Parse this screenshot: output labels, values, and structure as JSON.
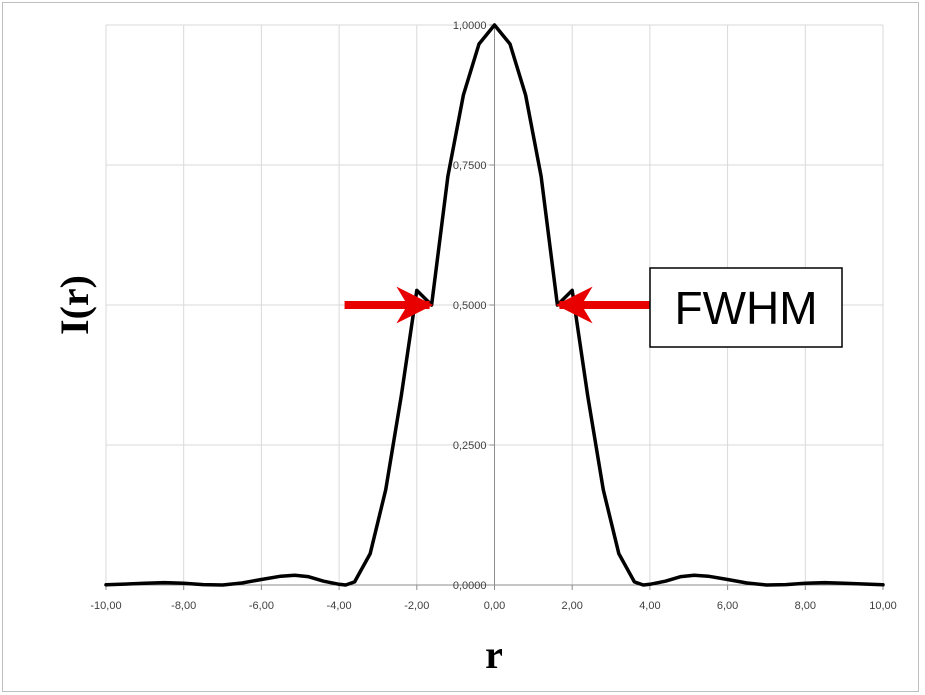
{
  "chart_data": {
    "type": "line",
    "xlabel": "r",
    "ylabel": "I(r)",
    "xlim": [
      -10,
      10
    ],
    "ylim": [
      0,
      1
    ],
    "x_ticks": [
      "-10,00",
      "-8,00",
      "-6,00",
      "-4,00",
      "-2,00",
      "0,00",
      "2,00",
      "4,00",
      "6,00",
      "8,00",
      "10,00"
    ],
    "y_ticks": [
      "0,0000",
      "0,2500",
      "0,5000",
      "0,7500",
      "1,0000"
    ],
    "x_tick_values": [
      -10,
      -8,
      -6,
      -4,
      -2,
      0,
      2,
      4,
      6,
      8,
      10
    ],
    "y_tick_values": [
      0,
      0.25,
      0.5,
      0.75,
      1
    ],
    "grid": true,
    "legend": "none",
    "series": [
      {
        "x": [
          -10,
          -9,
          -8.5,
          -8,
          -7.5,
          -7,
          -6.5,
          -6,
          -5.5,
          -5.14,
          -4.8,
          -4.4,
          -4,
          -3.83,
          -3.6,
          -3.2,
          -2.8,
          -2.4,
          -2,
          -1.62,
          -1.2,
          -0.8,
          -0.4,
          0,
          0.4,
          0.8,
          1.2,
          1.62,
          2,
          2.4,
          2.8,
          3.2,
          3.6,
          3.83,
          4,
          4.4,
          4.8,
          5.14,
          5.5,
          6,
          6.5,
          7,
          7.5,
          8,
          8.5,
          9,
          10
        ],
        "y": [
          0.0003,
          0.003,
          0.0042,
          0.003,
          0.0008,
          0.0,
          0.0035,
          0.0098,
          0.0158,
          0.0175,
          0.015,
          0.0068,
          0.0012,
          0.0,
          0.0055,
          0.056,
          0.17,
          0.338,
          0.526,
          0.5,
          0.73,
          0.875,
          0.966,
          1.0,
          0.966,
          0.875,
          0.73,
          0.5,
          0.526,
          0.338,
          0.17,
          0.056,
          0.0055,
          0.0,
          0.0012,
          0.0068,
          0.015,
          0.0175,
          0.0158,
          0.0098,
          0.0035,
          0.0,
          0.0008,
          0.003,
          0.0042,
          0.003,
          0.0003
        ],
        "color": "#000000"
      }
    ],
    "annotations": [
      {
        "text": "FWHM",
        "color": "#e80000",
        "left_x": -1.62,
        "right_x": 1.62,
        "y": 0.5
      }
    ]
  }
}
